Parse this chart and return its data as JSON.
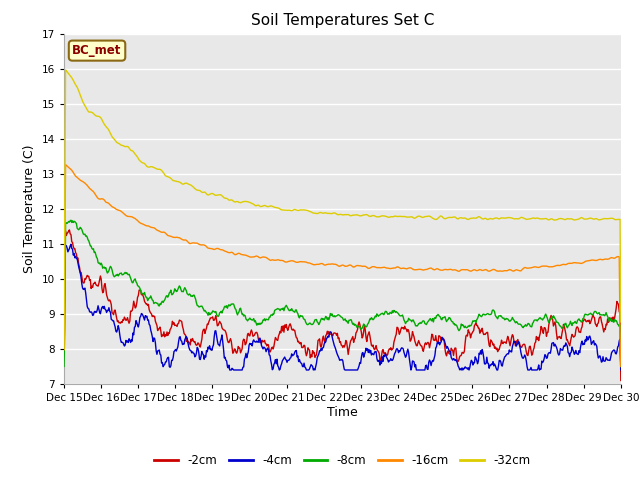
{
  "title": "Soil Temperatures Set C",
  "xlabel": "Time",
  "ylabel": "Soil Temperature (C)",
  "ylim": [
    7.0,
    17.0
  ],
  "yticks": [
    7.0,
    8.0,
    9.0,
    10.0,
    11.0,
    12.0,
    13.0,
    14.0,
    15.0,
    16.0,
    17.0
  ],
  "xtick_labels": [
    "Dec 15",
    "Dec 16",
    "Dec 17",
    "Dec 18",
    "Dec 19",
    "Dec 20",
    "Dec 21",
    "Dec 22",
    "Dec 23",
    "Dec 24",
    "Dec 25",
    "Dec 26",
    "Dec 27",
    "Dec 28",
    "Dec 29",
    "Dec 30"
  ],
  "n_points": 720,
  "label_box_text": "BC_met",
  "label_box_bg": "#ffffcc",
  "label_box_edge": "#8B6914",
  "label_box_text_color": "#8B0000",
  "series_colors": {
    "-2cm": "#cc0000",
    "-4cm": "#0000cc",
    "-8cm": "#00aa00",
    "-16cm": "#ff8800",
    "-32cm": "#ddcc00"
  },
  "plot_bg_color": "#e8e8e8",
  "fig_bg_color": "#ffffff",
  "grid_color": "#ffffff",
  "title_fontsize": 11,
  "axis_label_fontsize": 9,
  "tick_fontsize": 7.5
}
